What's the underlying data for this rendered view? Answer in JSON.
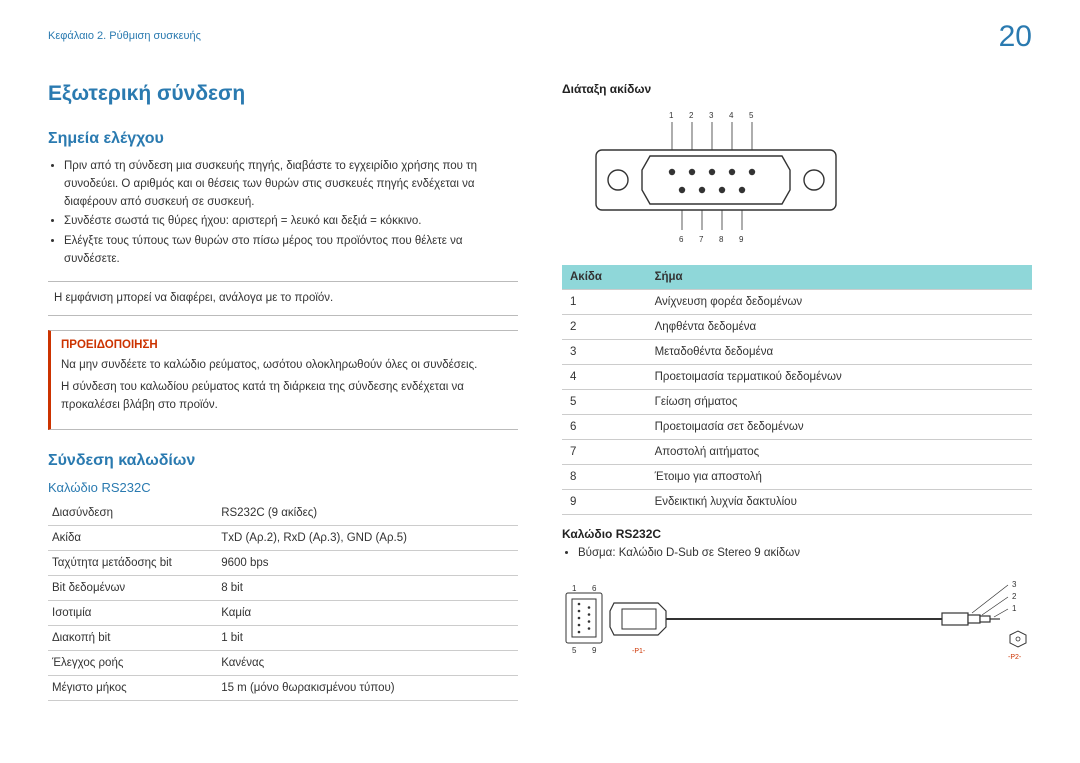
{
  "chapter": "Κεφάλαιο 2. Ρύθμιση συσκευής",
  "page_number": "20",
  "left": {
    "title": "Εξωτερική σύνδεση",
    "checkpoints": {
      "heading": "Σημεία ελέγχου",
      "bullets": [
        "Πριν από τη σύνδεση μια συσκευής πηγής, διαβάστε το εγχειρίδιο χρήσης που τη συνοδεύει. Ο αριθμός και οι θέσεις των θυρών στις συσκευές πηγής ενδέχεται να διαφέρουν από συσκευή σε συσκευή.",
        "Συνδέστε σωστά τις θύρες ήχου: αριστερή = λευκό και δεξιά = κόκκινο.",
        "Ελέγξτε τους τύπους των θυρών στο πίσω μέρος του προϊόντος που θέλετε να συνδέσετε."
      ],
      "note": "Η εμφάνιση μπορεί να διαφέρει, ανάλογα με το προϊόν.",
      "warning_title": "ΠΡΟΕΙΔΟΠΟΙΗΣΗ",
      "warning_p1": "Να μην συνδέετε το καλώδιο ρεύματος, ωσότου ολοκληρωθούν όλες οι συνδέσεις.",
      "warning_p2": "Η σύνδεση του καλωδίου ρεύματος κατά τη διάρκεια της σύνδεσης ενδέχεται να προκαλέσει βλάβη στο προϊόν."
    },
    "cable": {
      "heading": "Σύνδεση καλωδίων",
      "sub": "Καλώδιο RS232C",
      "rows": [
        [
          "Διασύνδεση",
          "RS232C (9 ακίδες)"
        ],
        [
          "Ακίδα",
          "TxD (Αρ.2), RxD (Αρ.3), GND (Αρ.5)"
        ],
        [
          "Ταχύτητα μετάδοσης bit",
          "9600 bps"
        ],
        [
          "Bit δεδομένων",
          "8 bit"
        ],
        [
          "Ισοτιμία",
          "Καμία"
        ],
        [
          "Διακοπή bit",
          "1 bit"
        ],
        [
          "Έλεγχος ροής",
          "Κανένας"
        ],
        [
          "Μέγιστο μήκος",
          "15 m (μόνο θωρακισμένου τύπου)"
        ]
      ]
    }
  },
  "right": {
    "pin_heading": "Διάταξη ακίδων",
    "top_labels": [
      "1",
      "2",
      "3",
      "4",
      "5"
    ],
    "bottom_labels": [
      "6",
      "7",
      "8",
      "9"
    ],
    "table": {
      "h1": "Ακίδα",
      "h2": "Σήμα",
      "rows": [
        [
          "1",
          "Ανίχνευση φορέα δεδομένων"
        ],
        [
          "2",
          "Ληφθέντα δεδομένα"
        ],
        [
          "3",
          "Μεταδοθέντα δεδομένα"
        ],
        [
          "4",
          "Προετοιμασία τερματικού δεδομένων"
        ],
        [
          "5",
          "Γείωση σήματος"
        ],
        [
          "6",
          "Προετοιμασία σετ δεδομένων"
        ],
        [
          "7",
          "Αποστολή αιτήματος"
        ],
        [
          "8",
          "Έτοιμο για αποστολή"
        ],
        [
          "9",
          "Ενδεικτική λυχνία δακτυλίου"
        ]
      ]
    },
    "cable_heading": "Καλώδιο RS232C",
    "cable_bullet": "Βύσμα: Καλώδιο D-Sub σε Stereo 9 ακίδων",
    "p1": "-P1-",
    "p2": "-P2-",
    "jack_labels": [
      "3",
      "2",
      "1"
    ],
    "dsub_corners": {
      "tl": "1",
      "tr": "6",
      "bl": "5",
      "br": "9"
    }
  },
  "colors": {
    "blue": "#2a7ab0",
    "red": "#c30",
    "teal": "#8fd7d9",
    "border": "#ccc"
  }
}
